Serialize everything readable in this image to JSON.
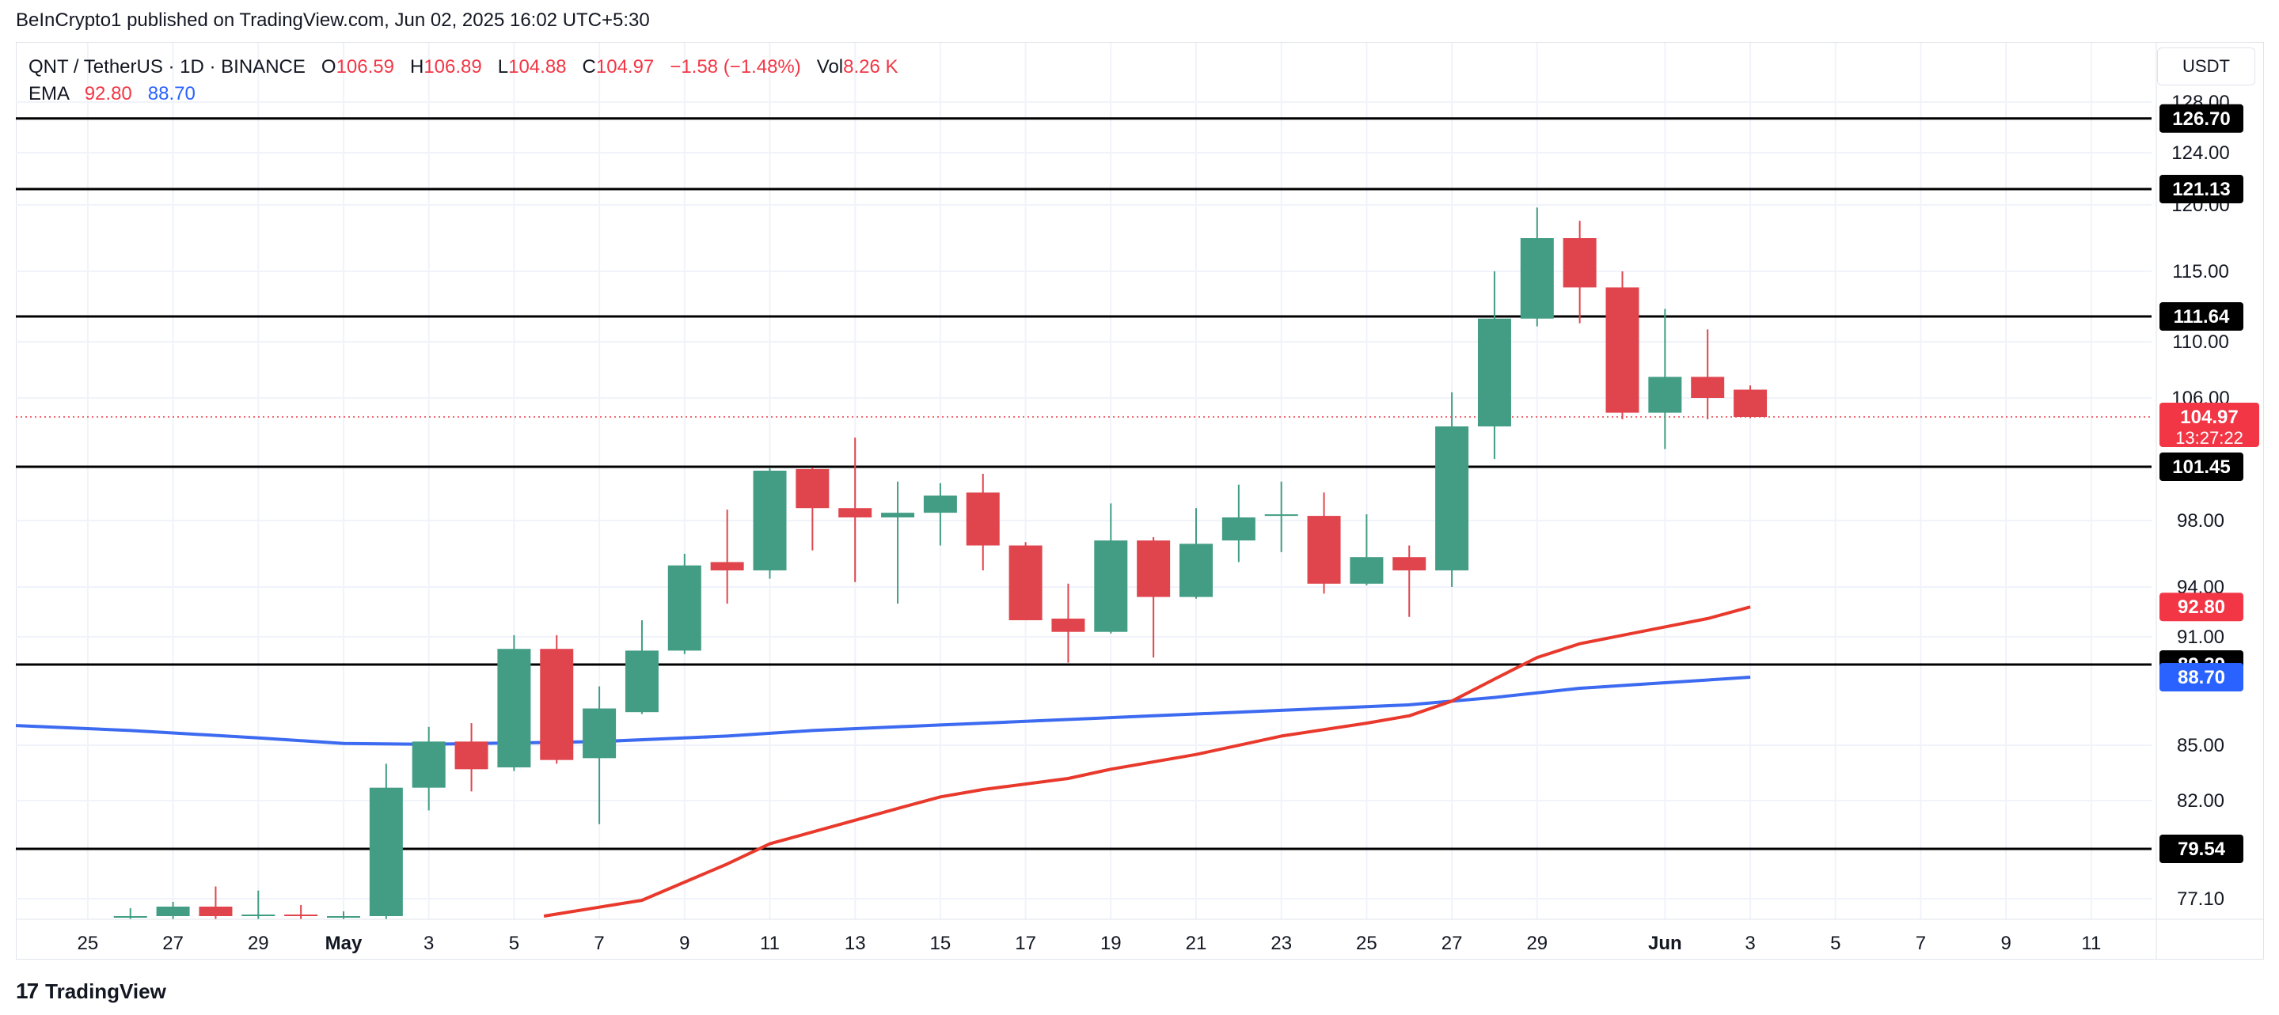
{
  "header": {
    "publisher": "BeInCrypto1 published on TradingView.com, Jun 02, 2025 16:02 UTC+5:30"
  },
  "legend": {
    "symbol": "QNT / TetherUS · 1D · BINANCE",
    "open_label": "O",
    "open": "106.59",
    "high_label": "H",
    "high": "106.89",
    "low_label": "L",
    "low": "104.88",
    "close_label": "C",
    "close": "104.97",
    "change": "−1.58 (−1.48%)",
    "vol_label": "Vol",
    "vol": "8.26 K",
    "ema_label": "EMA",
    "ema_fast": "92.80",
    "ema_slow": "88.70"
  },
  "currency": "USDT",
  "footer": {
    "brand": "TradingView",
    "logo": "17"
  },
  "colors": {
    "up": "#429d84",
    "down": "#e0454e",
    "ema_fast": "#e8392c",
    "ema_slow": "#3c6af0",
    "level": "#000000"
  },
  "chart_data": {
    "type": "candlestick",
    "y_ticks": [
      128.0,
      124.0,
      120.0,
      115.0,
      110.0,
      106.0,
      98.0,
      94.0,
      91.0,
      85.0,
      82.0,
      77.1
    ],
    "y_tick_labels": [
      "128.00",
      "124.00",
      "120.00",
      "115.00",
      "110.00",
      "106.00",
      "98.00",
      "94.00",
      "91.00",
      "85.00",
      "82.00",
      "77.10"
    ],
    "x_tick_labels": [
      "25",
      "27",
      "29",
      "May",
      "3",
      "5",
      "7",
      "9",
      "11",
      "13",
      "15",
      "17",
      "19",
      "21",
      "23",
      "25",
      "27",
      "29",
      "Jun",
      "3",
      "5",
      "7",
      "9",
      "11"
    ],
    "x_tick_days": [
      -6,
      -4,
      -2,
      0,
      2,
      4,
      6,
      8,
      10,
      12,
      14,
      16,
      18,
      20,
      22,
      24,
      26,
      28,
      31,
      33,
      35,
      37,
      39,
      41
    ],
    "candles": [
      {
        "d": -5,
        "o": 76.0,
        "h": 76.5,
        "l": 75.5,
        "c": 76.0
      },
      {
        "d": -4,
        "o": 76.0,
        "h": 76.9,
        "l": 75.8,
        "c": 76.6
      },
      {
        "d": -3,
        "o": 76.6,
        "h": 77.7,
        "l": 75.7,
        "c": 76.0
      },
      {
        "d": -2,
        "o": 76.0,
        "h": 77.5,
        "l": 75.8,
        "c": 76.1
      },
      {
        "d": -1,
        "o": 76.1,
        "h": 76.7,
        "l": 75.8,
        "c": 76.0
      },
      {
        "d": 0,
        "o": 76.0,
        "h": 76.3,
        "l": 75.7,
        "c": 76.0
      },
      {
        "d": 1,
        "o": 76.0,
        "h": 84.0,
        "l": 75.8,
        "c": 82.7
      },
      {
        "d": 2,
        "o": 82.7,
        "h": 86.0,
        "l": 81.5,
        "c": 85.2
      },
      {
        "d": 3,
        "o": 85.2,
        "h": 86.2,
        "l": 82.5,
        "c": 83.7
      },
      {
        "d": 4,
        "o": 83.8,
        "h": 91.1,
        "l": 83.6,
        "c": 90.3
      },
      {
        "d": 5,
        "o": 90.3,
        "h": 91.1,
        "l": 84.0,
        "c": 84.2
      },
      {
        "d": 6,
        "o": 84.3,
        "h": 88.2,
        "l": 80.8,
        "c": 87.0
      },
      {
        "d": 7,
        "o": 86.8,
        "h": 92.0,
        "l": 86.7,
        "c": 90.2
      },
      {
        "d": 8,
        "o": 90.2,
        "h": 96.0,
        "l": 90.0,
        "c": 95.3
      },
      {
        "d": 9,
        "o": 95.5,
        "h": 98.7,
        "l": 93.0,
        "c": 95.0
      },
      {
        "d": 10,
        "o": 95.0,
        "h": 101.4,
        "l": 94.5,
        "c": 101.2
      },
      {
        "d": 11,
        "o": 101.3,
        "h": 101.4,
        "l": 96.2,
        "c": 98.8
      },
      {
        "d": 12,
        "o": 98.8,
        "h": 103.5,
        "l": 94.3,
        "c": 98.2
      },
      {
        "d": 13,
        "o": 98.2,
        "h": 100.5,
        "l": 93.0,
        "c": 98.5
      },
      {
        "d": 14,
        "o": 98.5,
        "h": 100.4,
        "l": 96.5,
        "c": 99.6
      },
      {
        "d": 15,
        "o": 99.8,
        "h": 101.0,
        "l": 95.0,
        "c": 96.5
      },
      {
        "d": 16,
        "o": 96.5,
        "h": 96.7,
        "l": 92.0,
        "c": 92.0
      },
      {
        "d": 17,
        "o": 92.1,
        "h": 94.2,
        "l": 89.5,
        "c": 91.3
      },
      {
        "d": 18,
        "o": 91.3,
        "h": 99.1,
        "l": 91.2,
        "c": 96.8
      },
      {
        "d": 19,
        "o": 96.8,
        "h": 97.0,
        "l": 89.8,
        "c": 93.4
      },
      {
        "d": 20,
        "o": 93.4,
        "h": 98.8,
        "l": 93.3,
        "c": 96.6
      },
      {
        "d": 21,
        "o": 96.8,
        "h": 100.3,
        "l": 95.5,
        "c": 98.2
      },
      {
        "d": 22,
        "o": 98.3,
        "h": 100.5,
        "l": 96.1,
        "c": 98.4
      },
      {
        "d": 23,
        "o": 98.3,
        "h": 99.8,
        "l": 93.6,
        "c": 94.2
      },
      {
        "d": 24,
        "o": 94.2,
        "h": 98.4,
        "l": 94.1,
        "c": 95.8
      },
      {
        "d": 25,
        "o": 95.8,
        "h": 96.5,
        "l": 92.2,
        "c": 95.0
      },
      {
        "d": 26,
        "o": 95.0,
        "h": 106.4,
        "l": 94.0,
        "c": 104.3
      },
      {
        "d": 27,
        "o": 104.3,
        "h": 115.0,
        "l": 102.0,
        "c": 111.5
      },
      {
        "d": 28,
        "o": 111.5,
        "h": 119.8,
        "l": 111.0,
        "c": 117.5
      },
      {
        "d": 29,
        "o": 117.5,
        "h": 118.8,
        "l": 111.2,
        "c": 113.8
      },
      {
        "d": 30,
        "o": 113.8,
        "h": 115.0,
        "l": 104.8,
        "c": 105.2
      },
      {
        "d": 31,
        "o": 105.2,
        "h": 112.2,
        "l": 102.7,
        "c": 107.5
      },
      {
        "d": 32,
        "o": 107.5,
        "h": 110.8,
        "l": 104.8,
        "c": 106.0
      },
      {
        "d": 33,
        "o": 106.59,
        "h": 106.89,
        "l": 104.88,
        "c": 104.97
      }
    ],
    "ema_fast": {
      "name": "EMA",
      "points": [
        [
          4.7,
          76.0
        ],
        [
          7,
          77.0
        ],
        [
          9,
          78.8
        ],
        [
          10,
          79.8
        ],
        [
          12,
          81.0
        ],
        [
          13,
          81.6
        ],
        [
          14,
          82.2
        ],
        [
          15,
          82.6
        ],
        [
          17,
          83.2
        ],
        [
          18,
          83.7
        ],
        [
          20,
          84.5
        ],
        [
          22,
          85.5
        ],
        [
          24,
          86.2
        ],
        [
          25,
          86.6
        ],
        [
          26,
          87.4
        ],
        [
          27,
          88.6
        ],
        [
          28,
          89.8
        ],
        [
          29,
          90.6
        ],
        [
          31,
          91.6
        ],
        [
          32,
          92.1
        ],
        [
          33,
          92.8
        ]
      ]
    },
    "ema_slow": {
      "name": "EMA",
      "points": [
        [
          -8,
          86.1
        ],
        [
          -5,
          85.8
        ],
        [
          -2,
          85.4
        ],
        [
          0,
          85.1
        ],
        [
          2,
          85.05
        ],
        [
          6,
          85.2
        ],
        [
          9,
          85.5
        ],
        [
          11,
          85.8
        ],
        [
          14,
          86.1
        ],
        [
          16,
          86.3
        ],
        [
          19,
          86.6
        ],
        [
          22,
          86.9
        ],
        [
          25,
          87.2
        ],
        [
          27,
          87.6
        ],
        [
          29,
          88.1
        ],
        [
          31,
          88.4
        ],
        [
          33,
          88.7
        ]
      ]
    },
    "levels": [
      {
        "value": 126.7,
        "label": "126.70"
      },
      {
        "value": 121.13,
        "label": "121.13"
      },
      {
        "value": 111.64,
        "label": "111.64"
      },
      {
        "value": 101.45,
        "label": "101.45"
      },
      {
        "value": 89.39,
        "label": "89.39"
      },
      {
        "value": 79.54,
        "label": "79.54"
      }
    ],
    "last_price": {
      "value": 104.97,
      "label": "104.97",
      "countdown": "13:27:22"
    },
    "ema_fast_badge": {
      "value": 92.8,
      "label": "92.80"
    },
    "ema_slow_badge": {
      "value": 88.7,
      "label": "88.70"
    },
    "grid": true
  }
}
